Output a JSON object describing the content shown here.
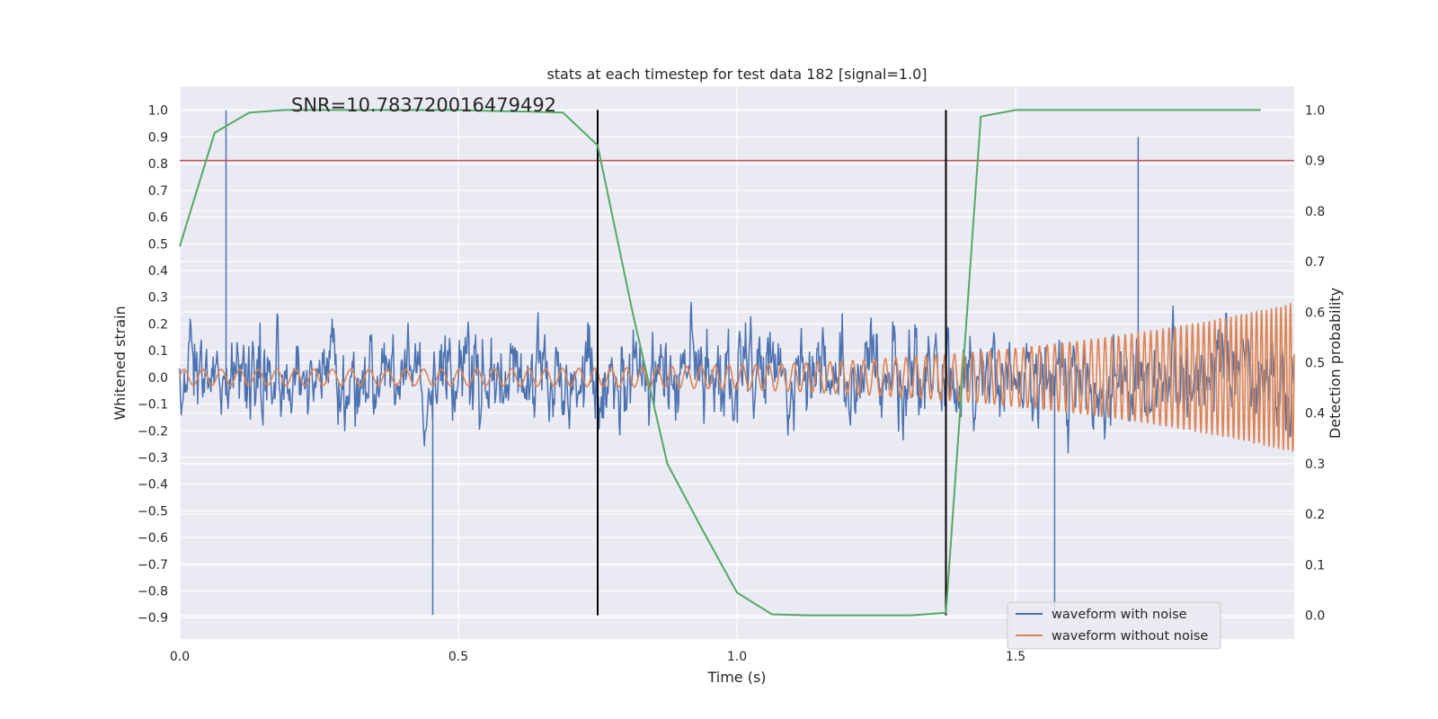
{
  "chart_data": {
    "type": "line",
    "title": "stats at each timestep for test data 182 [signal=1.0]",
    "annotation": "SNR=10.783720016479492",
    "xlabel": "Time (s)",
    "ylabel_left": "Whitened strain",
    "ylabel_right": "Detection probability",
    "xlim": [
      0.0,
      2.0
    ],
    "ylim_left": [
      -0.98,
      1.09
    ],
    "ylim_right": [
      -0.047,
      1.047
    ],
    "x_ticks": [
      "0.0",
      "0.5",
      "1.0",
      "1.5"
    ],
    "y_left_ticks": [
      "−0.9",
      "−0.8",
      "−0.7",
      "−0.6",
      "−0.5",
      "−0.4",
      "−0.3",
      "−0.2",
      "−0.1",
      "0.0",
      "0.1",
      "0.2",
      "0.3",
      "0.4",
      "0.5",
      "0.6",
      "0.7",
      "0.8",
      "0.9",
      "1.0"
    ],
    "y_right_ticks": [
      "0.0",
      "0.1",
      "0.2",
      "0.3",
      "0.4",
      "0.5",
      "0.6",
      "0.7",
      "0.8",
      "0.9",
      "1.0"
    ],
    "grid": true,
    "legend_position": "lower-right",
    "series": [
      {
        "name": "waveform with noise",
        "color": "#4c72b0",
        "axis": "left",
        "description_values": {
          "duration": 2.0,
          "amplitude_typical": 0.25,
          "max": 1.0,
          "min": -0.89
        }
      },
      {
        "name": "waveform without noise",
        "color": "#dd8452",
        "axis": "left",
        "description_values": {
          "f_start_hz": 30,
          "f_end_hz": 120,
          "amp_start": 0.03,
          "amp_end": 0.28
        }
      },
      {
        "name": "",
        "color": "#55a868",
        "axis": "right",
        "x": [
          0.0,
          0.0625,
          0.125,
          0.1875,
          0.25,
          0.3125,
          0.375,
          0.4375,
          0.5,
          0.5625,
          0.625,
          0.6875,
          0.75,
          0.8125,
          0.875,
          0.9375,
          1.0,
          1.0625,
          1.125,
          1.1875,
          1.25,
          1.3125,
          1.375,
          1.4375,
          1.5,
          1.5625,
          1.625,
          1.6875,
          1.75,
          1.8125,
          1.875,
          1.94
        ],
        "y": [
          0.73,
          0.955,
          0.995,
          1.0,
          1.0,
          1.0,
          1.0,
          1.0,
          1.0,
          0.998,
          0.997,
          0.995,
          0.93,
          0.6,
          0.3,
          0.17,
          0.045,
          0.002,
          0.0,
          0.0,
          0.0,
          0.0,
          0.005,
          0.987,
          1.0,
          1.0,
          1.0,
          1.0,
          1.0,
          1.0,
          1.0,
          1.0
        ]
      }
    ],
    "threshold": {
      "color": "#c44e52",
      "value_right": 0.9
    },
    "vlines": {
      "color": "#000000",
      "x": [
        0.75,
        1.375
      ],
      "y_right_range": [
        0.0,
        1.0
      ]
    }
  }
}
